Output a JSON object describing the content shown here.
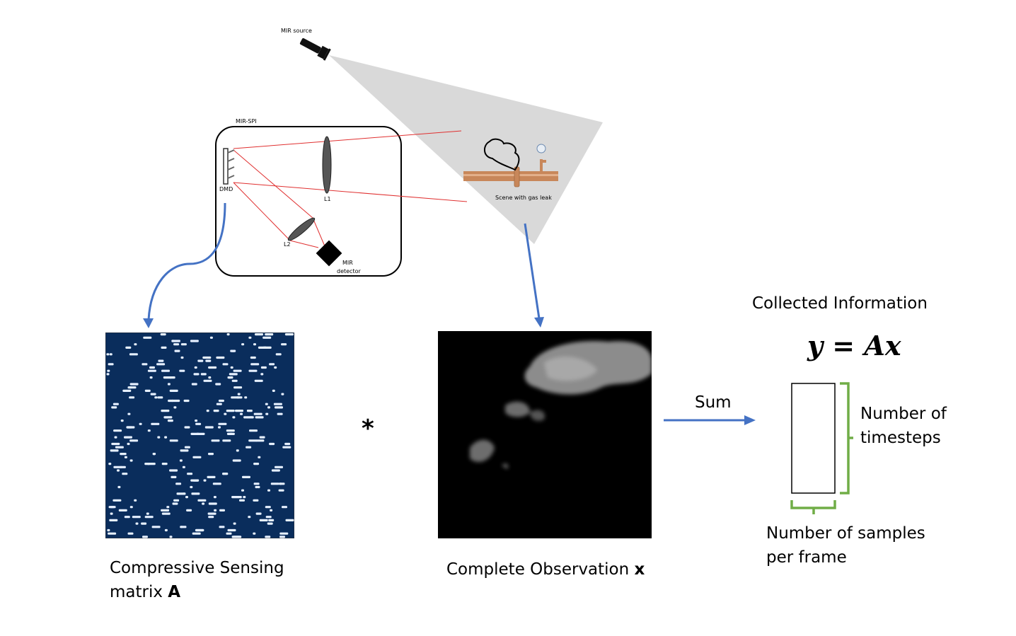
{
  "labels": {
    "mir_source": "MIR source",
    "mir_spi": "MIR-SPI",
    "dmd": "DMD",
    "l1": "L1",
    "l2": "L2",
    "mir_detector_1": "MIR",
    "mir_detector_2": "detector",
    "scene": "Scene with gas leak"
  },
  "matrix_caption": {
    "line1": "Compressive Sensing",
    "line2_text": "matrix ",
    "line2_bold": "A"
  },
  "observation_caption": {
    "text": "Complete Observation ",
    "bold": "x"
  },
  "operator": "*",
  "sum_label": "Sum",
  "collected": {
    "title": "Collected Information",
    "formula": "y = Ax",
    "timesteps_1": "Number of",
    "timesteps_2": "timesteps",
    "samples_1": "Number of samples",
    "samples_2": "per frame"
  },
  "colors": {
    "arrow": "#4472c4",
    "beam": "#e03030",
    "brace": "#70ad47",
    "matrix_bg": "#0a2d5c",
    "matrix_dot": "#e6f0ff",
    "cone": "#d9d9d9",
    "pipe": "#c8875a"
  }
}
